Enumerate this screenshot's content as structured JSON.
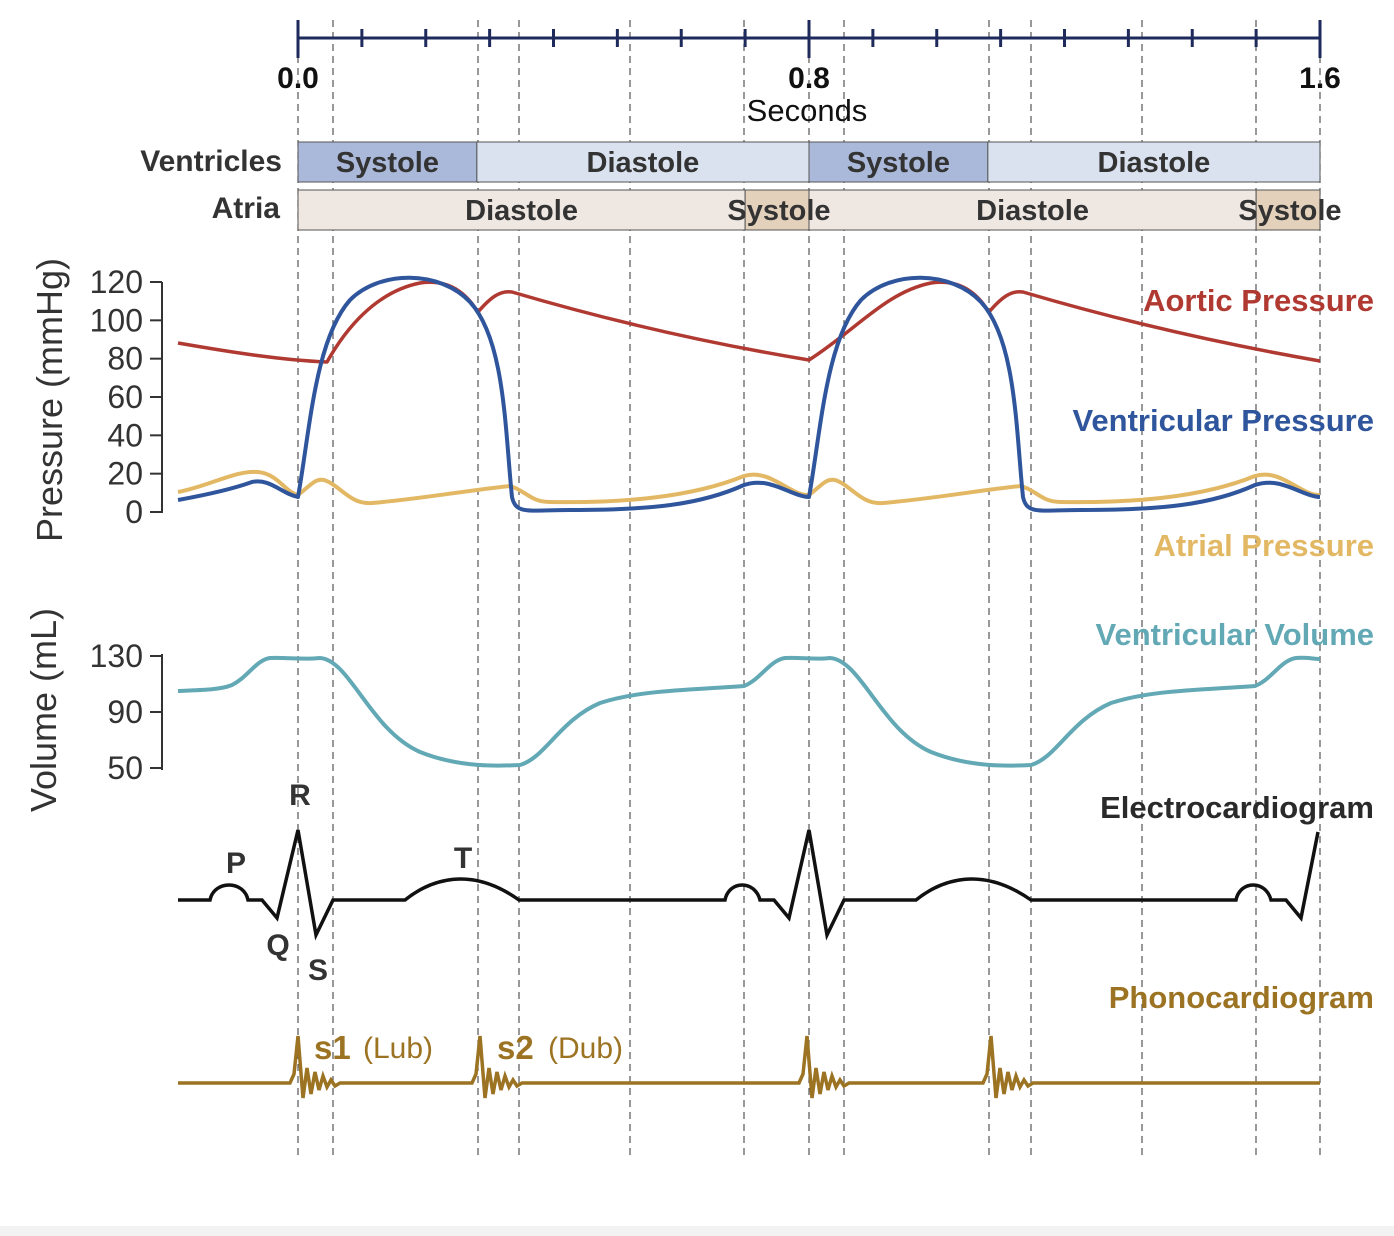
{
  "timeline": {
    "ticks": [
      "0.0",
      "0.8",
      "1.6"
    ],
    "unit_label": "Seconds"
  },
  "phases": {
    "ventricles_label": "Ventricles",
    "atria_label": "Atria",
    "ventricles": [
      {
        "label": "Systole",
        "start": 0.0,
        "end": 0.28,
        "kind": "systole"
      },
      {
        "label": "Diastole",
        "start": 0.28,
        "end": 0.8,
        "kind": "diastole"
      },
      {
        "label": "Systole",
        "start": 0.8,
        "end": 1.08,
        "kind": "systole"
      },
      {
        "label": "Diastole",
        "start": 1.08,
        "end": 1.6,
        "kind": "diastole"
      }
    ],
    "atria": [
      {
        "label": "Diastole",
        "start": 0.0,
        "end": 0.7,
        "kind": "diastole"
      },
      {
        "label": "Systole",
        "start": 0.7,
        "end": 0.8,
        "kind": "systole"
      },
      {
        "label": "Diastole",
        "start": 0.8,
        "end": 1.5,
        "kind": "diastole"
      },
      {
        "label": "Systole",
        "start": 1.5,
        "end": 1.6,
        "kind": "systole"
      }
    ]
  },
  "pressure_axis": {
    "label": "Pressure (mmHg)",
    "ticks": [
      "120",
      "100",
      "80",
      "60",
      "40",
      "20",
      "0"
    ]
  },
  "volume_axis": {
    "label": "Volume (mL)",
    "ticks": [
      "130",
      "90",
      "50"
    ]
  },
  "traces": {
    "aortic": "Aortic Pressure",
    "ventricular": "Ventricular Pressure",
    "atrial": "Atrial Pressure",
    "volume": "Ventricular Volume",
    "ecg": "Electrocardiogram",
    "phono": "Phonocardiogram"
  },
  "ecg_labels": {
    "p": "P",
    "q": "Q",
    "r": "R",
    "s": "S",
    "t": "T"
  },
  "heart_sounds": {
    "s1": "s1",
    "s1_note": "(Lub)",
    "s2": "s2",
    "s2_note": "(Dub)"
  },
  "colors": {
    "timeline": "#1f2a5c",
    "aortic": "#b03a32",
    "ventricular": "#2f559c",
    "atrial": "#e3b864",
    "volume": "#62a9b5",
    "ecg": "#111111",
    "phono": "#9b7322",
    "ventricular_systole": "#aab9da",
    "ventricular_diastole": "#d9e2ee",
    "atrial_diastole": "#efe7e2",
    "atrial_systole": "#e3d1bc"
  }
}
